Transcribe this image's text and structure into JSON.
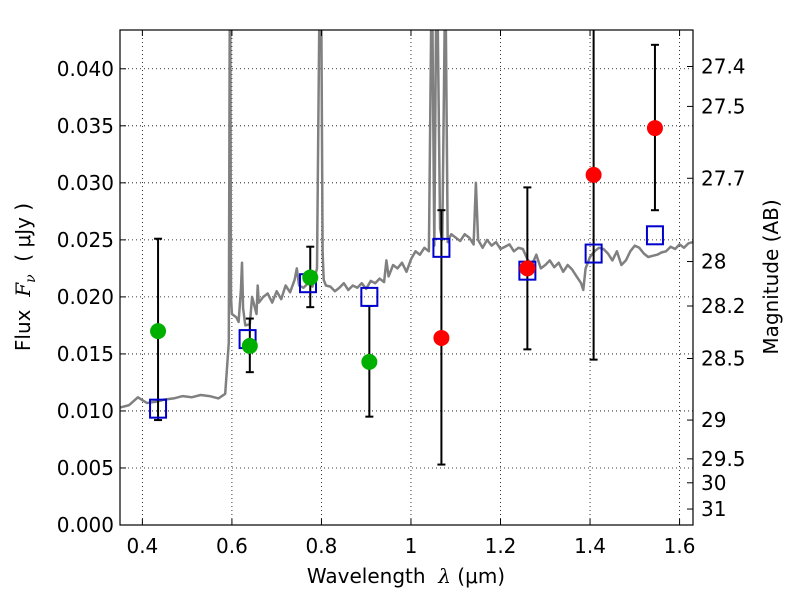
{
  "chart_data": {
    "type": "scatter",
    "title": "",
    "xlabel": {
      "prefix": "Wavelength  ",
      "symbol": "λ",
      "unit": " (μm)"
    },
    "ylabel": {
      "prefix": "Flux  ",
      "symbol": "F",
      "subscript": "ν",
      "unit": "  ( μJy )"
    },
    "ylabel_right": "Magnitude (AB)",
    "xlim": [
      0.35,
      1.63
    ],
    "ylim": [
      0.0,
      0.0434
    ],
    "grid": true,
    "grid_style": "dotted",
    "x_ticks": [
      0.4,
      0.6,
      0.8,
      1.0,
      1.2,
      1.4,
      1.6
    ],
    "x_tick_labels": [
      "0.4",
      "0.6",
      "0.8",
      "1",
      "1.2",
      "1.4",
      "1.6"
    ],
    "y_ticks": [
      0.0,
      0.005,
      0.01,
      0.015,
      0.02,
      0.025,
      0.03,
      0.035,
      0.04
    ],
    "y_tick_labels": [
      "0.000",
      "0.005",
      "0.010",
      "0.015",
      "0.020",
      "0.025",
      "0.030",
      "0.035",
      "0.040"
    ],
    "right_ticks": [
      {
        "label": "27.4",
        "flux": 0.0402
      },
      {
        "label": "27.5",
        "flux": 0.0367
      },
      {
        "label": "27.7",
        "flux": 0.0304
      },
      {
        "label": "28",
        "flux": 0.0231
      },
      {
        "label": "28.2",
        "flux": 0.0192
      },
      {
        "label": "28.5",
        "flux": 0.0146
      },
      {
        "label": "29",
        "flux": 0.0092
      },
      {
        "label": "29.5",
        "flux": 0.0058
      },
      {
        "label": "30",
        "flux": 0.0037
      },
      {
        "label": "31",
        "flux": 0.0014
      }
    ],
    "series": [
      {
        "kind": "model_spectrum",
        "color": "#808080",
        "x": [
          0.35,
          0.37,
          0.39,
          0.41,
          0.43,
          0.45,
          0.47,
          0.49,
          0.51,
          0.53,
          0.55,
          0.57,
          0.585,
          0.593,
          0.595,
          0.5965,
          0.598,
          0.6,
          0.61,
          0.615,
          0.62,
          0.6225,
          0.625,
          0.63,
          0.64,
          0.645,
          0.655,
          0.6575,
          0.66,
          0.67,
          0.68,
          0.69,
          0.7,
          0.71,
          0.72,
          0.73,
          0.74,
          0.745,
          0.75,
          0.76,
          0.77,
          0.78,
          0.79,
          0.795,
          0.8,
          0.8025,
          0.805,
          0.81,
          0.82,
          0.83,
          0.84,
          0.85,
          0.86,
          0.87,
          0.88,
          0.89,
          0.9,
          0.91,
          0.92,
          0.93,
          0.94,
          0.945,
          0.95,
          0.96,
          0.97,
          0.98,
          0.99,
          1.0,
          1.01,
          1.02,
          1.03,
          1.04,
          1.045,
          1.048,
          1.052,
          1.056,
          1.06,
          1.065,
          1.07,
          1.075,
          1.078,
          1.082,
          1.086,
          1.09,
          1.1,
          1.11,
          1.12,
          1.13,
          1.14,
          1.145,
          1.15,
          1.16,
          1.17,
          1.18,
          1.19,
          1.2,
          1.21,
          1.22,
          1.23,
          1.24,
          1.25,
          1.26,
          1.27,
          1.28,
          1.29,
          1.3,
          1.31,
          1.32,
          1.33,
          1.34,
          1.35,
          1.36,
          1.37,
          1.38,
          1.385,
          1.39,
          1.4,
          1.41,
          1.42,
          1.43,
          1.44,
          1.45,
          1.46,
          1.47,
          1.48,
          1.49,
          1.5,
          1.51,
          1.52,
          1.53,
          1.54,
          1.55,
          1.56,
          1.57,
          1.58,
          1.59,
          1.6,
          1.61,
          1.62,
          1.63
        ],
        "y": [
          0.0103,
          0.0105,
          0.0112,
          0.0107,
          0.0108,
          0.011,
          0.0111,
          0.0113,
          0.0112,
          0.0114,
          0.0113,
          0.0111,
          0.0115,
          0.016,
          0.0434,
          0.0434,
          0.02,
          0.0185,
          0.0182,
          0.0178,
          0.0206,
          0.023,
          0.019,
          0.0175,
          0.0176,
          0.02,
          0.0185,
          0.021,
          0.0195,
          0.02,
          0.0203,
          0.0195,
          0.0205,
          0.0198,
          0.021,
          0.0204,
          0.0215,
          0.0225,
          0.021,
          0.0208,
          0.0212,
          0.0209,
          0.0225,
          0.0434,
          0.0434,
          0.024,
          0.0215,
          0.021,
          0.0209,
          0.0205,
          0.0208,
          0.0212,
          0.0206,
          0.021,
          0.0208,
          0.0212,
          0.0207,
          0.0214,
          0.0212,
          0.0216,
          0.0213,
          0.0232,
          0.0218,
          0.0228,
          0.0225,
          0.023,
          0.0222,
          0.0233,
          0.024,
          0.0237,
          0.0243,
          0.024,
          0.0434,
          0.0434,
          0.0245,
          0.0434,
          0.0434,
          0.026,
          0.025,
          0.0434,
          0.0434,
          0.0248,
          0.0252,
          0.0255,
          0.0252,
          0.0249,
          0.0255,
          0.0252,
          0.0246,
          0.03,
          0.025,
          0.0243,
          0.025,
          0.0245,
          0.0248,
          0.0242,
          0.0244,
          0.0246,
          0.024,
          0.0243,
          0.0242,
          0.0233,
          0.0228,
          0.0237,
          0.0225,
          0.0228,
          0.0232,
          0.0226,
          0.023,
          0.0222,
          0.0228,
          0.0224,
          0.0218,
          0.0212,
          0.0206,
          0.0225,
          0.0235,
          0.024,
          0.0243,
          0.0242,
          0.0238,
          0.0232,
          0.024,
          0.0228,
          0.0232,
          0.024,
          0.0245,
          0.0243,
          0.0238,
          0.0235,
          0.0236,
          0.0237,
          0.0239,
          0.024,
          0.0244,
          0.0242,
          0.0246,
          0.0243,
          0.0247,
          0.0248
        ]
      },
      {
        "kind": "green_points",
        "color": "#00b000",
        "points": [
          {
            "x": 0.435,
            "y": 0.017
          },
          {
            "x": 0.64,
            "y": 0.0157
          },
          {
            "x": 0.775,
            "y": 0.0217
          },
          {
            "x": 0.907,
            "y": 0.0143
          }
        ]
      },
      {
        "kind": "red_points",
        "color": "#ff0000",
        "points": [
          {
            "x": 1.068,
            "y": 0.0164
          },
          {
            "x": 1.26,
            "y": 0.0225
          },
          {
            "x": 1.408,
            "y": 0.0307
          },
          {
            "x": 1.545,
            "y": 0.0348
          }
        ]
      },
      {
        "kind": "blue_squares",
        "color": "#0000cc",
        "points": [
          {
            "x": 0.435,
            "y": 0.0102
          },
          {
            "x": 0.635,
            "y": 0.0163
          },
          {
            "x": 0.77,
            "y": 0.0212
          },
          {
            "x": 0.907,
            "y": 0.02
          },
          {
            "x": 1.068,
            "y": 0.0243
          },
          {
            "x": 1.26,
            "y": 0.0223
          },
          {
            "x": 1.408,
            "y": 0.0238
          },
          {
            "x": 1.545,
            "y": 0.0254
          }
        ]
      },
      {
        "kind": "error_bars",
        "color": "#000000",
        "bars": [
          {
            "x": 0.435,
            "low": 0.0092,
            "high": 0.0251
          },
          {
            "x": 0.64,
            "low": 0.0134,
            "high": 0.0181
          },
          {
            "x": 0.775,
            "low": 0.0191,
            "high": 0.0244
          },
          {
            "x": 0.907,
            "low": 0.0095,
            "high": 0.0192
          },
          {
            "x": 1.068,
            "low": 0.0053,
            "high": 0.0276
          },
          {
            "x": 1.26,
            "low": 0.0154,
            "high": 0.0296
          },
          {
            "x": 1.408,
            "low": 0.0145,
            "high": 0.0434
          },
          {
            "x": 1.545,
            "low": 0.0276,
            "high": 0.0421
          }
        ]
      }
    ]
  }
}
